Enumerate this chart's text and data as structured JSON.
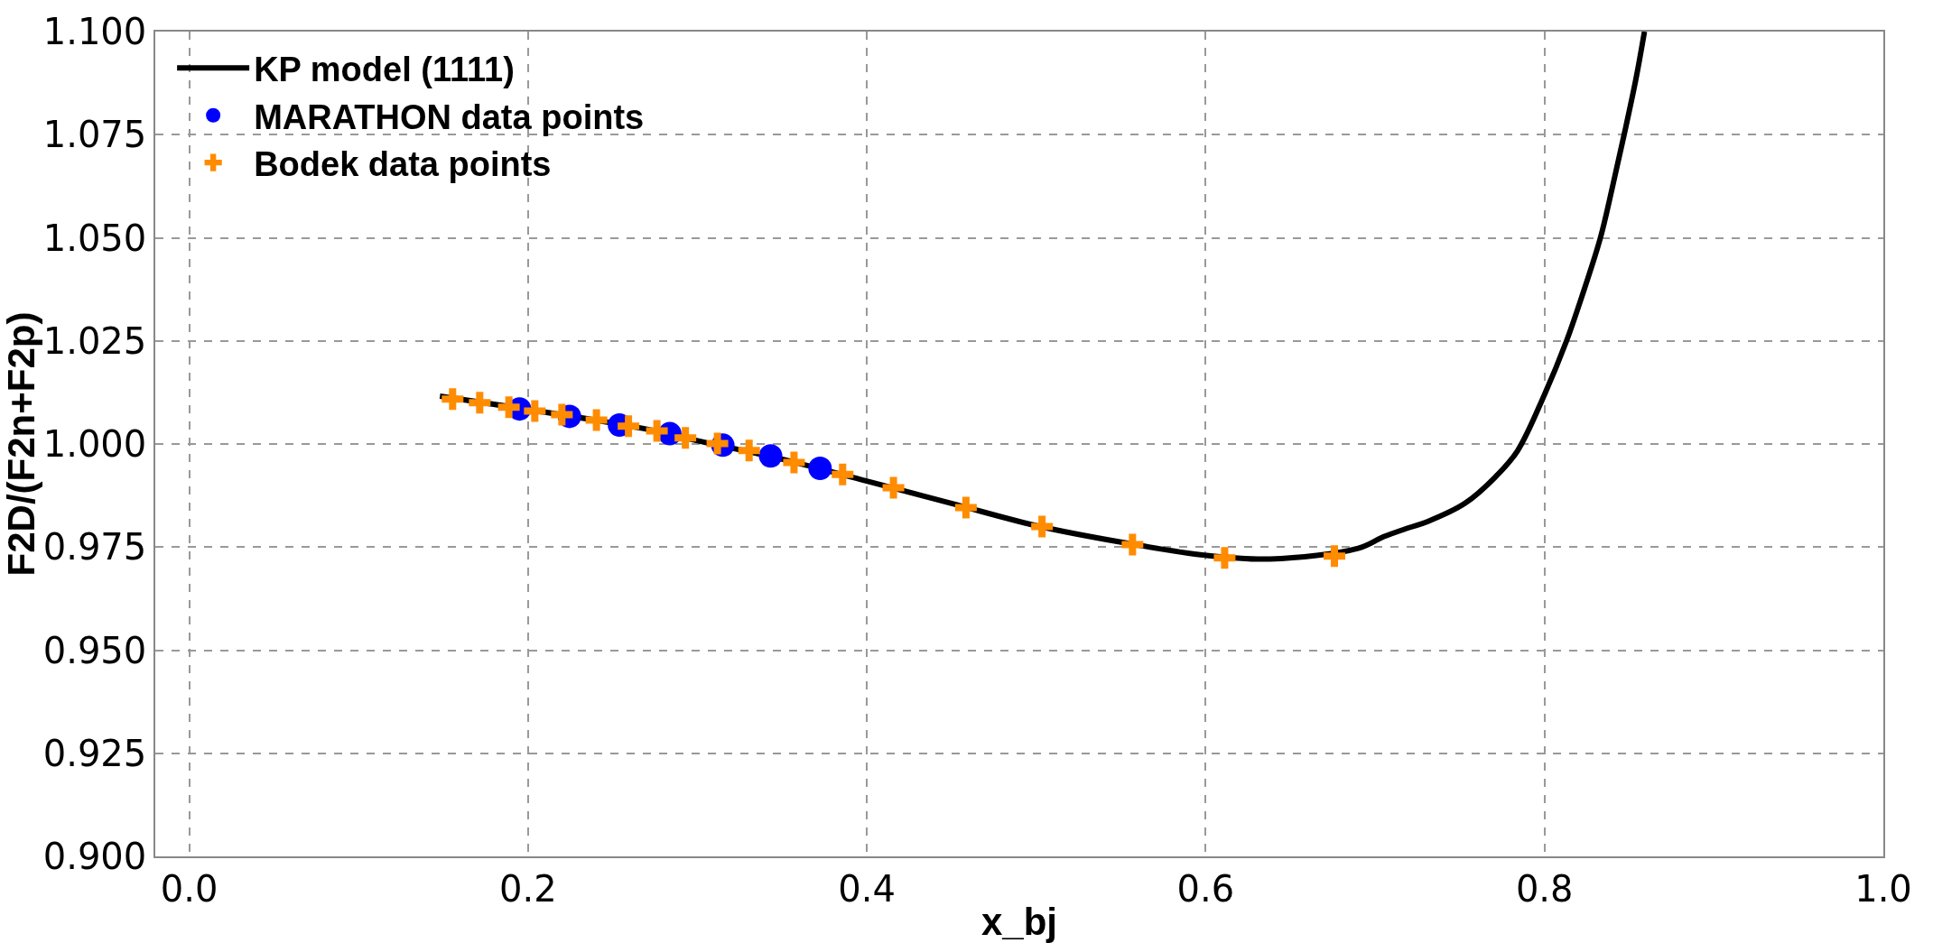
{
  "chart_data": {
    "type": "scatter",
    "xlabel": "x_bj",
    "ylabel": "F2D/(F2n+F2p)",
    "xlim": [
      -0.02,
      1.0
    ],
    "ylim": [
      0.9,
      1.1
    ],
    "xticks": [
      {
        "value": 0,
        "label": "0.0"
      },
      0.2,
      0.4,
      0.6,
      0.8,
      {
        "value": 1,
        "label": "1.0"
      }
    ],
    "yticks": [
      {
        "value": 0.9,
        "label": "0.900"
      },
      0.925,
      {
        "value": 0.95,
        "label": "0.950"
      },
      0.975,
      {
        "value": 1.0,
        "label": "1.000"
      },
      1.025,
      {
        "value": 1.05,
        "label": "1.050"
      },
      1.075,
      {
        "value": 1.1,
        "label": "1.100"
      }
    ],
    "grid": true,
    "legend": "top left",
    "series": [
      {
        "name": "KP model (1111)",
        "type": "line",
        "marker": "none",
        "color": "#000000",
        "x": [
          0.148,
          0.2675,
          0.3,
          0.35,
          0.4,
          0.45,
          0.5,
          0.55,
          0.6,
          0.638,
          0.69,
          0.705,
          0.72,
          0.731,
          0.753,
          0.771,
          0.784,
          0.8,
          0.813,
          0.822,
          0.833,
          0.84,
          0.847,
          0.854,
          0.859
        ],
        "values": [
          1.0116,
          1.0038,
          1.0008,
          0.9963,
          0.991,
          0.9856,
          0.9802,
          0.9762,
          0.973,
          0.9721,
          0.9747,
          0.9775,
          0.9797,
          0.9812,
          0.9856,
          0.992,
          0.9983,
          1.012,
          1.025,
          1.0357,
          1.05,
          1.0621,
          1.075,
          1.0886,
          1.1
        ]
      },
      {
        "name": "MARATHON data points",
        "marker": "circle",
        "color": "#0000ff",
        "x": [
          0.195,
          0.2245,
          0.254,
          0.2837,
          0.315,
          0.3432,
          0.3724
        ],
        "values": [
          1.0085,
          1.0067,
          1.0046,
          1.0025,
          0.9997,
          0.9971,
          0.9941
        ]
      },
      {
        "name": "Bodek data points",
        "marker": "cross",
        "color": "#ff8c00",
        "x": [
          0.1555,
          0.1715,
          0.1887,
          0.204,
          0.22,
          0.2404,
          0.2593,
          0.2761,
          0.2929,
          0.3118,
          0.3305,
          0.357,
          0.3857,
          0.4157,
          0.4585,
          0.5034,
          0.5568,
          0.6112,
          0.676
        ],
        "values": [
          1.0109,
          1.01,
          1.0089,
          1.008,
          1.0071,
          1.0058,
          1.0043,
          1.0032,
          1.0015,
          1.0001,
          0.9984,
          0.9955,
          0.9926,
          0.9894,
          0.9846,
          0.98,
          0.9756,
          0.9724,
          0.9728
        ]
      }
    ]
  }
}
